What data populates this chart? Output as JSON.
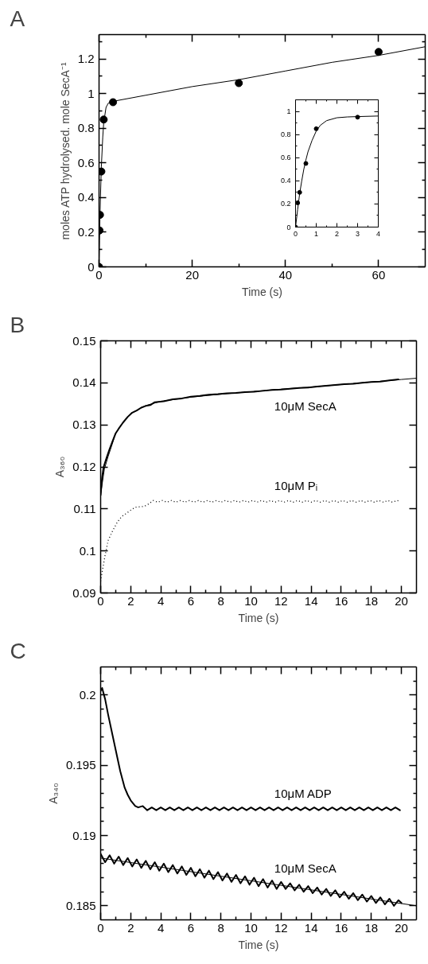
{
  "chart_data": [
    {
      "title": "A",
      "type": "scatter",
      "xlabel": "Time (s)",
      "ylabel": "moles ATP hydrolysed. mole SecA⁻¹",
      "xlim": [
        0,
        70
      ],
      "ylim": [
        0,
        1.34
      ],
      "xticks": [
        0,
        {
          "value": 10,
          "label": null
        },
        20,
        {
          "value": 30,
          "label": null
        },
        40,
        {
          "value": 50,
          "label": null
        },
        60
      ],
      "yticks": [
        0,
        {
          "value": 0.1,
          "label": null
        },
        0.2,
        {
          "value": 0.3,
          "label": null
        },
        0.4,
        {
          "value": 0.5,
          "label": null
        },
        0.6,
        {
          "value": 0.7,
          "label": null
        },
        0.8,
        {
          "value": 0.9,
          "label": null
        },
        1,
        {
          "value": 1.1,
          "label": null
        },
        1.2,
        {
          "value": 1.3,
          "label": null
        }
      ],
      "series": [
        {
          "type": "scatter",
          "marker": "circle",
          "color": "#000000",
          "x": [
            0,
            0.1,
            0.2,
            0.5,
            1,
            3,
            30,
            60
          ],
          "values": [
            0,
            0.21,
            0.3,
            0.55,
            0.85,
            0.95,
            1.06,
            1.24
          ]
        },
        {
          "type": "line",
          "marker": "none",
          "color": "#000000",
          "x": [
            0,
            0.1,
            0.2,
            0.3,
            0.5,
            0.8,
            1,
            1.5,
            2,
            3,
            10,
            20,
            30,
            40,
            50,
            60,
            70
          ],
          "values": [
            0,
            0.15,
            0.29,
            0.4,
            0.58,
            0.75,
            0.83,
            0.92,
            0.945,
            0.955,
            0.99,
            1.04,
            1.08,
            1.13,
            1.18,
            1.22,
            1.27
          ]
        }
      ]
    },
    {
      "type": "scatter",
      "xlim": [
        0,
        4
      ],
      "ylim": [
        0,
        1.1
      ],
      "xticks": [
        0,
        {
          "value": 0.5,
          "label": null
        },
        1,
        {
          "value": 1.5,
          "label": null
        },
        2,
        {
          "value": 2.5,
          "label": null
        },
        3,
        {
          "value": 3.5,
          "label": null
        },
        4
      ],
      "yticks": [
        0,
        {
          "value": 0.1,
          "label": null
        },
        0.2,
        {
          "value": 0.3,
          "label": null
        },
        0.4,
        {
          "value": 0.5,
          "label": null
        },
        0.6,
        {
          "value": 0.7,
          "label": null
        },
        0.8,
        {
          "value": 0.9,
          "label": null
        },
        1
      ],
      "series": [
        {
          "type": "scatter",
          "marker": "circle",
          "color": "#000000",
          "x": [
            0,
            0.1,
            0.2,
            0.5,
            1,
            3
          ],
          "values": [
            0,
            0.21,
            0.3,
            0.55,
            0.85,
            0.95
          ]
        },
        {
          "type": "line",
          "marker": "none",
          "color": "#000000",
          "x": [
            0,
            0.1,
            0.2,
            0.3,
            0.4,
            0.5,
            0.6,
            0.8,
            1,
            1.2,
            1.5,
            2,
            2.5,
            3,
            4
          ],
          "values": [
            0,
            0.15,
            0.29,
            0.4,
            0.5,
            0.58,
            0.65,
            0.75,
            0.83,
            0.88,
            0.92,
            0.945,
            0.952,
            0.955,
            0.96
          ]
        }
      ]
    },
    {
      "title": "B",
      "type": "line",
      "xlabel": "Time (s)",
      "ylabel": "A₃₆₀",
      "xlim": [
        0,
        21
      ],
      "ylim": [
        0.09,
        0.15
      ],
      "xticks": [
        0,
        {
          "value": 1,
          "label": null
        },
        2,
        {
          "value": 3,
          "label": null
        },
        4,
        {
          "value": 5,
          "label": null
        },
        6,
        {
          "value": 7,
          "label": null
        },
        8,
        {
          "value": 9,
          "label": null
        },
        10,
        {
          "value": 11,
          "label": null
        },
        12,
        {
          "value": 13,
          "label": null
        },
        14,
        {
          "value": 15,
          "label": null
        },
        16,
        {
          "value": 17,
          "label": null
        },
        18,
        {
          "value": 19,
          "label": null
        },
        20
      ],
      "yticks": [
        0.09,
        0.1,
        0.11,
        0.12,
        0.13,
        0.14,
        0.15
      ],
      "series": [
        {
          "name": "10μM SecA",
          "color": "#000000",
          "line_style": "solid",
          "x": [
            0,
            0.1,
            0.2,
            0.4,
            0.6,
            0.8,
            1.0,
            1.2,
            1.5,
            1.8,
            2.1,
            2.4,
            2.7,
            3.0,
            3.3,
            3.6,
            4.2,
            4.8,
            5.4,
            6.0,
            6.6,
            7.2,
            7.8,
            8.4,
            9.0,
            9.6,
            10.2,
            10.8,
            11.4,
            12.0,
            12.6,
            13.2,
            13.8,
            14.4,
            15.0,
            15.6,
            16.2,
            16.8,
            17.4,
            18.0,
            18.6,
            19.2,
            19.8
          ],
          "values": [
            0.1133,
            0.1175,
            0.12,
            0.1222,
            0.1243,
            0.1262,
            0.128,
            0.1291,
            0.1306,
            0.1319,
            0.1329,
            0.1334,
            0.1341,
            0.1345,
            0.1347,
            0.1354,
            0.1356,
            0.1361,
            0.1363,
            0.1367,
            0.1369,
            0.1372,
            0.1373,
            0.1375,
            0.1376,
            0.1378,
            0.1379,
            0.1381,
            0.1383,
            0.1384,
            0.1386,
            0.1388,
            0.1389,
            0.1391,
            0.1393,
            0.1395,
            0.1397,
            0.1398,
            0.14,
            0.1402,
            0.1403,
            0.1406,
            0.1408
          ]
        },
        {
          "color": "#000000",
          "line_style": "solid",
          "x": [
            0,
            0.25,
            0.5,
            1,
            1.5,
            2,
            3,
            4,
            6,
            8,
            10,
            12,
            14,
            16,
            18,
            20,
            21
          ],
          "values": [
            0.1135,
            0.1195,
            0.1225,
            0.1279,
            0.1307,
            0.1327,
            0.1346,
            0.1356,
            0.1366,
            0.1373,
            0.1379,
            0.1385,
            0.139,
            0.1396,
            0.1402,
            0.1408,
            0.1411
          ]
        },
        {
          "name": "10μM Pᵢ",
          "color": "#000000",
          "line_style": "dotted",
          "x": [
            0,
            0.1,
            0.3,
            0.5,
            0.8,
            1.1,
            1.4,
            1.7,
            2.0,
            2.3,
            2.6,
            2.9,
            3.2,
            3.5,
            3.8,
            4.1,
            4.4,
            4.7,
            5.0,
            5.3,
            5.6,
            5.9,
            6.2,
            6.5,
            6.8,
            7.1,
            7.4,
            7.7,
            8.0,
            8.3,
            8.6,
            8.9,
            9.2,
            9.5,
            9.8,
            10.1,
            10.4,
            10.7,
            11.0,
            11.3,
            11.6,
            11.9,
            12.2,
            12.5,
            12.8,
            13.1,
            13.4,
            13.7,
            14.0,
            14.3,
            14.6,
            14.9,
            15.2,
            15.5,
            15.8,
            16.1,
            16.4,
            16.7,
            17.0,
            17.3,
            17.6,
            17.9,
            18.2,
            18.5,
            18.8,
            19.1,
            19.4,
            19.7,
            19.9
          ],
          "values": [
            0.0928,
            0.095,
            0.099,
            0.1025,
            0.1048,
            0.1068,
            0.1082,
            0.1089,
            0.1097,
            0.1104,
            0.1105,
            0.1106,
            0.1112,
            0.112,
            0.1116,
            0.112,
            0.1116,
            0.112,
            0.1116,
            0.112,
            0.1116,
            0.112,
            0.1116,
            0.112,
            0.1116,
            0.112,
            0.1116,
            0.112,
            0.1116,
            0.112,
            0.1116,
            0.112,
            0.1116,
            0.112,
            0.1116,
            0.112,
            0.1116,
            0.112,
            0.1116,
            0.112,
            0.1116,
            0.112,
            0.1116,
            0.112,
            0.1116,
            0.112,
            0.1116,
            0.112,
            0.1116,
            0.112,
            0.1116,
            0.112,
            0.1116,
            0.112,
            0.1116,
            0.112,
            0.1116,
            0.112,
            0.1116,
            0.112,
            0.1116,
            0.112,
            0.1116,
            0.112,
            0.1116,
            0.112,
            0.1116,
            0.112,
            0.1118
          ]
        }
      ]
    },
    {
      "title": "C",
      "type": "line",
      "xlabel": "Time (s)",
      "ylabel": "A₃₄₀",
      "xlim": [
        0,
        21
      ],
      "ylim": [
        0.184,
        0.202
      ],
      "xticks": [
        0,
        {
          "value": 1,
          "label": null
        },
        2,
        {
          "value": 3,
          "label": null
        },
        4,
        {
          "value": 5,
          "label": null
        },
        6,
        {
          "value": 7,
          "label": null
        },
        8,
        {
          "value": 9,
          "label": null
        },
        10,
        {
          "value": 11,
          "label": null
        },
        12,
        {
          "value": 13,
          "label": null
        },
        14,
        {
          "value": 15,
          "label": null
        },
        16,
        {
          "value": 17,
          "label": null
        },
        18,
        {
          "value": 19,
          "label": null
        },
        20
      ],
      "yticks": [
        0.185,
        {
          "value": 0.186,
          "label": null
        },
        {
          "value": 0.187,
          "label": null
        },
        {
          "value": 0.188,
          "label": null
        },
        {
          "value": 0.189,
          "label": null
        },
        0.19,
        {
          "value": 0.191,
          "label": null
        },
        {
          "value": 0.192,
          "label": null
        },
        {
          "value": 0.193,
          "label": null
        },
        {
          "value": 0.194,
          "label": null
        },
        0.195,
        {
          "value": 0.196,
          "label": null
        },
        {
          "value": 0.197,
          "label": null
        },
        {
          "value": 0.198,
          "label": null
        },
        {
          "value": 0.199,
          "label": null
        },
        0.2,
        {
          "value": 0.201,
          "label": null
        }
      ],
      "series": [
        {
          "name": "10μM ADP",
          "color": "#000000",
          "line_style": "solid",
          "x": [
            0,
            0.1,
            0.3,
            0.5,
            0.7,
            1.0,
            1.3,
            1.6,
            1.8,
            2.0,
            2.3,
            2.5,
            2.8,
            3.1,
            3.4,
            3.7,
            4.0,
            4.3,
            4.6,
            4.9,
            5.2,
            5.5,
            5.8,
            6.1,
            6.4,
            6.7,
            7.0,
            7.3,
            7.6,
            7.9,
            8.2,
            8.5,
            8.8,
            9.1,
            9.4,
            9.7,
            10.0,
            10.3,
            10.6,
            10.9,
            11.2,
            11.5,
            11.8,
            12.1,
            12.4,
            12.7,
            13.0,
            13.3,
            13.6,
            13.9,
            14.2,
            14.5,
            14.8,
            15.1,
            15.4,
            15.7,
            16.0,
            16.3,
            16.6,
            16.9,
            17.2,
            17.5,
            17.8,
            18.1,
            18.4,
            18.7,
            19.0,
            19.3,
            19.6,
            19.9
          ],
          "values": [
            0.2003,
            0.2005,
            0.1997,
            0.1986,
            0.1976,
            0.1961,
            0.1946,
            0.1934,
            0.1929,
            0.1925,
            0.1921,
            0.192,
            0.1921,
            0.1918,
            0.192,
            0.1918,
            0.192,
            0.1918,
            0.192,
            0.1918,
            0.192,
            0.1918,
            0.192,
            0.1918,
            0.192,
            0.1918,
            0.192,
            0.1918,
            0.192,
            0.1918,
            0.192,
            0.1918,
            0.192,
            0.1918,
            0.192,
            0.1918,
            0.192,
            0.1918,
            0.192,
            0.1918,
            0.192,
            0.1918,
            0.192,
            0.1918,
            0.192,
            0.1918,
            0.192,
            0.1918,
            0.192,
            0.1918,
            0.192,
            0.1918,
            0.192,
            0.1918,
            0.192,
            0.1918,
            0.192,
            0.1918,
            0.192,
            0.1918,
            0.192,
            0.1918,
            0.192,
            0.1918,
            0.192,
            0.1918,
            0.192,
            0.1918,
            0.192,
            0.1918
          ]
        },
        {
          "name": "10μM SecA",
          "color": "#000000",
          "line_style": "solid",
          "x": [
            0,
            0.3,
            0.6,
            0.9,
            1.2,
            1.5,
            1.8,
            2.1,
            2.4,
            2.7,
            3.0,
            3.3,
            3.6,
            3.9,
            4.2,
            4.5,
            4.8,
            5.1,
            5.4,
            5.7,
            6.0,
            6.3,
            6.6,
            6.9,
            7.2,
            7.5,
            7.8,
            8.1,
            8.4,
            8.7,
            9.0,
            9.3,
            9.6,
            9.9,
            10.2,
            10.5,
            10.8,
            11.1,
            11.4,
            11.7,
            12.0,
            12.3,
            12.6,
            12.9,
            13.2,
            13.5,
            13.8,
            14.1,
            14.4,
            14.7,
            15.0,
            15.3,
            15.6,
            15.9,
            16.2,
            16.5,
            16.8,
            17.1,
            17.4,
            17.7,
            18.0,
            18.3,
            18.6,
            18.9,
            19.2,
            19.5,
            19.8,
            20.0
          ],
          "values": [
            0.1887,
            0.1881,
            0.1886,
            0.188,
            0.1885,
            0.1879,
            0.1884,
            0.1878,
            0.1883,
            0.1877,
            0.1882,
            0.1876,
            0.1881,
            0.1875,
            0.188,
            0.1874,
            0.1879,
            0.1873,
            0.1878,
            0.1872,
            0.1877,
            0.1871,
            0.1876,
            0.187,
            0.1875,
            0.1869,
            0.1874,
            0.1868,
            0.1873,
            0.1867,
            0.1872,
            0.1866,
            0.1871,
            0.1865,
            0.187,
            0.1864,
            0.1869,
            0.1863,
            0.1868,
            0.1862,
            0.1867,
            0.1862,
            0.1866,
            0.1861,
            0.1865,
            0.186,
            0.1864,
            0.1859,
            0.1863,
            0.1858,
            0.1862,
            0.1857,
            0.1861,
            0.1856,
            0.186,
            0.1855,
            0.1859,
            0.1854,
            0.1858,
            0.1853,
            0.1857,
            0.1852,
            0.1856,
            0.1851,
            0.1855,
            0.185,
            0.1854,
            0.1852
          ]
        },
        {
          "color": "#000000",
          "line_style": "solid",
          "x": [
            0,
            21
          ],
          "values": [
            0.1884,
            0.185
          ]
        }
      ]
    }
  ]
}
